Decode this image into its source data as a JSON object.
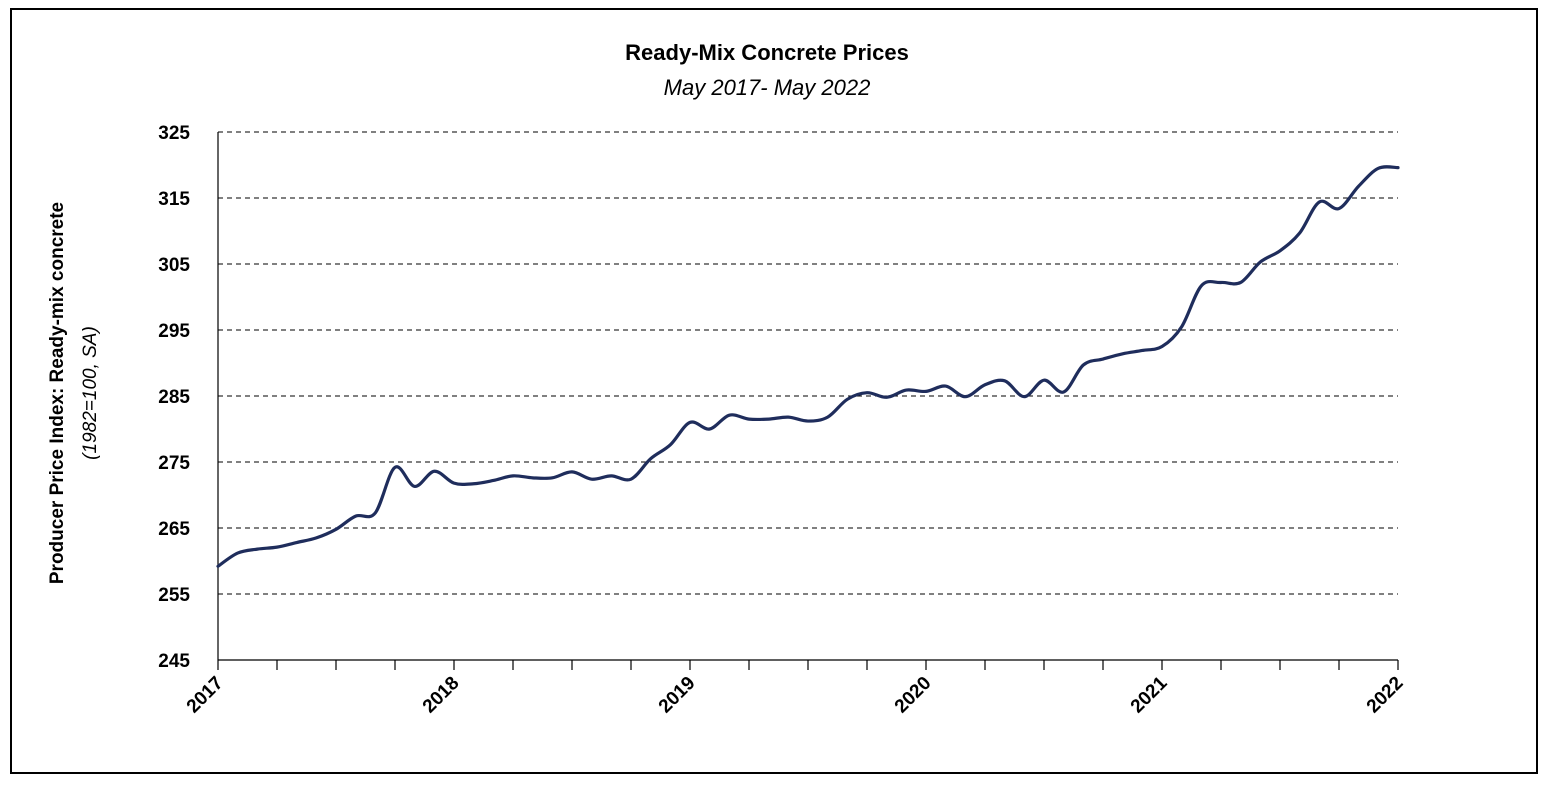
{
  "chart_data": {
    "type": "line",
    "title": "Ready-Mix Concrete Prices",
    "subtitle": "May 2017- May 2022",
    "ylabel": "Producer Price Index: Ready-mix concrete",
    "ylabel_note": "(1982=100, SA)",
    "ylim": [
      245,
      325
    ],
    "yticks": [
      245,
      255,
      265,
      275,
      285,
      295,
      305,
      315,
      325
    ],
    "xlim": [
      "2017-05",
      "2022-05"
    ],
    "xticks": [
      "2017",
      "2018",
      "2019",
      "2020",
      "2021",
      "2022"
    ],
    "grid": "horizontal-dashed",
    "legend": "none",
    "line_color": "#1f2d5c",
    "series": [
      {
        "x": [
          "2017-05",
          "2017-06",
          "2017-07",
          "2017-08",
          "2017-09",
          "2017-10",
          "2017-11",
          "2017-12",
          "2018-01",
          "2018-02",
          "2018-03",
          "2018-04",
          "2018-05",
          "2018-06",
          "2018-07",
          "2018-08",
          "2018-09",
          "2018-10",
          "2018-11",
          "2018-12",
          "2019-01",
          "2019-02",
          "2019-03",
          "2019-04",
          "2019-05",
          "2019-06",
          "2019-07",
          "2019-08",
          "2019-09",
          "2019-10",
          "2019-11",
          "2019-12",
          "2020-01",
          "2020-02",
          "2020-03",
          "2020-04",
          "2020-05",
          "2020-06",
          "2020-07",
          "2020-08",
          "2020-09",
          "2020-10",
          "2020-11",
          "2020-12",
          "2021-01",
          "2021-02",
          "2021-03",
          "2021-04",
          "2021-05",
          "2021-06",
          "2021-07",
          "2021-08",
          "2021-09",
          "2021-10",
          "2021-11",
          "2021-12",
          "2022-01",
          "2022-02",
          "2022-03",
          "2022-04",
          "2022-05"
        ],
        "values": [
          259.2,
          261.2,
          261.8,
          262.1,
          262.8,
          263.5,
          264.8,
          266.8,
          267.3,
          274.2,
          271.3,
          273.6,
          271.8,
          271.7,
          272.2,
          272.9,
          272.6,
          272.6,
          273.5,
          272.4,
          272.9,
          272.4,
          275.5,
          277.6,
          281.0,
          280.0,
          282.1,
          281.5,
          281.5,
          281.8,
          281.2,
          281.8,
          284.5,
          285.5,
          284.8,
          285.9,
          285.7,
          286.5,
          284.9,
          286.7,
          287.3,
          284.9,
          287.4,
          285.6,
          289.7,
          290.6,
          291.4,
          291.9,
          292.5,
          295.5,
          301.7,
          302.2,
          302.2,
          305.3,
          307.0,
          309.7,
          314.4,
          313.4,
          316.8,
          319.5,
          319.6
        ]
      }
    ]
  }
}
